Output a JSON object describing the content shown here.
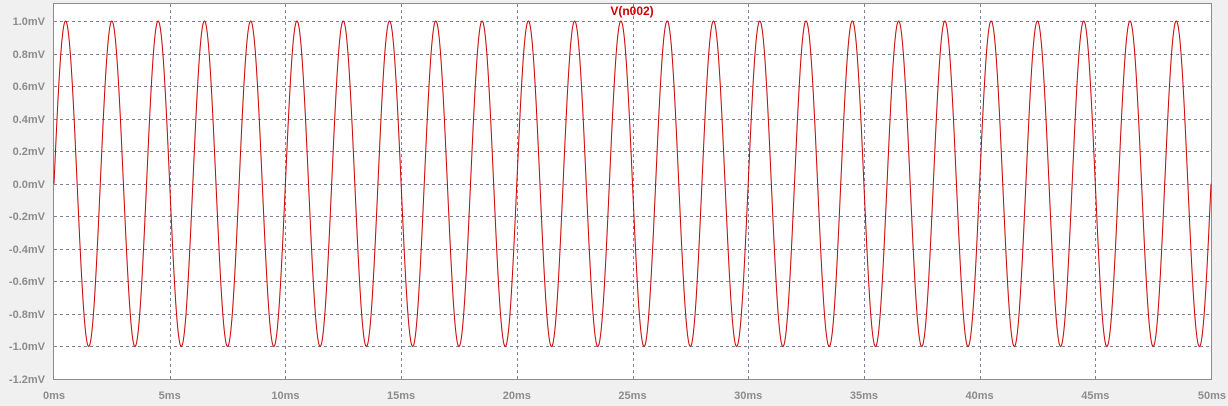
{
  "chart_data": {
    "type": "line",
    "title": "",
    "xlabel": "",
    "ylabel": "",
    "xlim": [
      0,
      50
    ],
    "ylim": [
      -1.2,
      1.0
    ],
    "x_unit": "ms",
    "y_unit": "mV",
    "x_ticks": [
      "0ms",
      "5ms",
      "10ms",
      "15ms",
      "20ms",
      "25ms",
      "30ms",
      "35ms",
      "40ms",
      "45ms",
      "50ms"
    ],
    "y_ticks": [
      "1.0mV",
      "0.8mV",
      "0.6mV",
      "0.4mV",
      "0.2mV",
      "0.0mV",
      "-0.2mV",
      "-0.4mV",
      "-0.6mV",
      "-0.8mV",
      "-1.0mV",
      "-1.2mV"
    ],
    "grid": true,
    "series": [
      {
        "name": "V(n002)",
        "color": "#cc0000",
        "function": "sine",
        "amplitude": 1.0,
        "frequency_hz": 500,
        "phase_deg": 0,
        "offset": 0
      }
    ]
  },
  "colors": {
    "background": "#f0f0f0",
    "plot_area": "#ffffff",
    "grid": "#7f7f9f",
    "axis_text": "#8c8c8c",
    "trace": "#cc0000"
  }
}
